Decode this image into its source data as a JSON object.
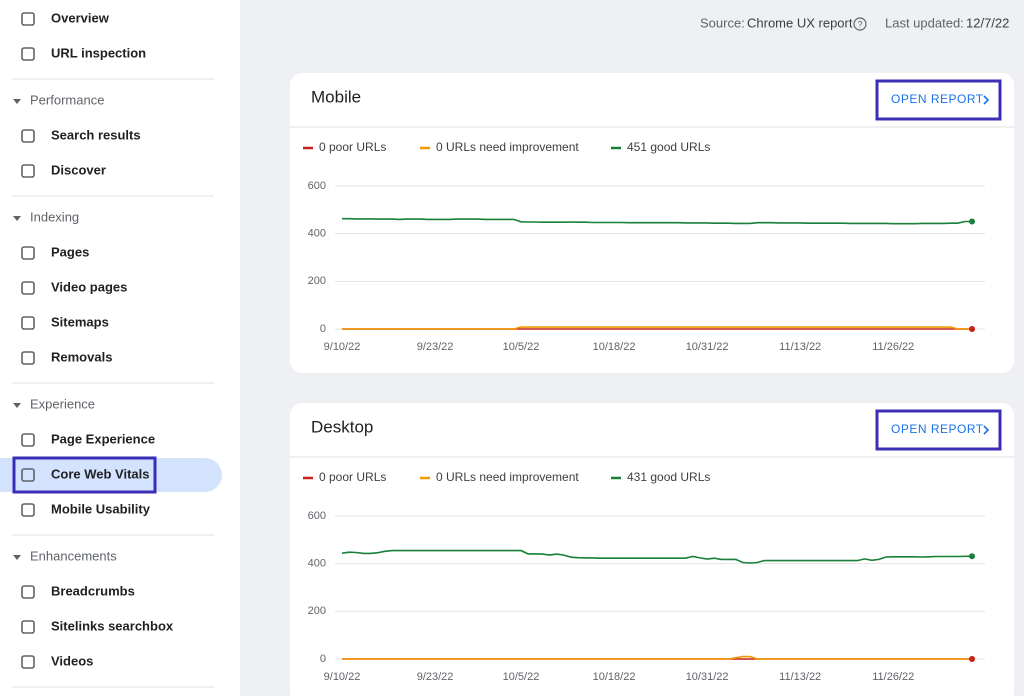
{
  "nav": {
    "items": [
      "Overview",
      "URL inspection"
    ],
    "groups": [
      {
        "heading": "Performance",
        "items": [
          "Search results",
          "Discover"
        ]
      },
      {
        "heading": "Indexing",
        "items": [
          "Pages",
          "Video pages",
          "Sitemaps",
          "Removals"
        ]
      },
      {
        "heading": "Experience",
        "items": [
          "Page Experience",
          "Core Web Vitals",
          "Mobile Usability"
        ]
      },
      {
        "heading": "Enhancements",
        "items": [
          "Breadcrumbs",
          "Sitelinks searchbox",
          "Videos"
        ]
      }
    ]
  },
  "header": {
    "source_label": "Source:",
    "source": "Chrome UX report",
    "updated_label": "Last updated:",
    "updated": "12/7/22"
  },
  "chart_data": [
    {
      "type": "line",
      "title": "Mobile",
      "button": "OPEN REPORT",
      "categories": [
        "9/10/22",
        null,
        null,
        null,
        null,
        null,
        null,
        null,
        null,
        null,
        null,
        null,
        null,
        "9/23/22",
        null,
        null,
        null,
        null,
        null,
        null,
        null,
        null,
        null,
        null,
        null,
        "10/5/22",
        null,
        null,
        null,
        null,
        null,
        null,
        null,
        null,
        null,
        null,
        null,
        null,
        "10/18/22",
        null,
        null,
        null,
        null,
        null,
        null,
        null,
        null,
        null,
        null,
        null,
        null,
        "10/31/22",
        null,
        null,
        null,
        null,
        null,
        null,
        null,
        null,
        null,
        null,
        null,
        null,
        "11/13/22",
        null,
        null,
        null,
        null,
        null,
        null,
        null,
        null,
        null,
        null,
        null,
        null,
        "11/26/22",
        null,
        null,
        null,
        null,
        null,
        null,
        null,
        null,
        null,
        null,
        null
      ],
      "series": [
        {
          "name": "0 poor URLs",
          "color": "#c5221f",
          "values": [
            0,
            0,
            0,
            0,
            0,
            0,
            0,
            0,
            0,
            0,
            0,
            0,
            0,
            0,
            0,
            0,
            0,
            0,
            0,
            0,
            0,
            0,
            0,
            0,
            0,
            0,
            0,
            0,
            0,
            0,
            0,
            0,
            0,
            0,
            0,
            0,
            0,
            0,
            0,
            0,
            0,
            0,
            0,
            0,
            0,
            0,
            0,
            0,
            0,
            0,
            0,
            0,
            0,
            0,
            0,
            0,
            0,
            0,
            0,
            0,
            0,
            0,
            0,
            0,
            0,
            0,
            0,
            0,
            0,
            0,
            0,
            0,
            0,
            0,
            0,
            0,
            0,
            0,
            0,
            0,
            0,
            0,
            0,
            0,
            0,
            0,
            0,
            0,
            0
          ]
        },
        {
          "name": "0 URLs need improvement",
          "color": "#f29900",
          "values": [
            0,
            0,
            0,
            0,
            0,
            0,
            0,
            0,
            0,
            0,
            0,
            0,
            0,
            0,
            0,
            0,
            0,
            0,
            0,
            0,
            0,
            0,
            0,
            0,
            0,
            8,
            8,
            8,
            8,
            8,
            8,
            8,
            8,
            8,
            8,
            8,
            8,
            8,
            8,
            8,
            8,
            8,
            8,
            8,
            8,
            8,
            8,
            8,
            8,
            8,
            8,
            8,
            8,
            8,
            8,
            8,
            8,
            8,
            8,
            8,
            8,
            8,
            8,
            8,
            8,
            8,
            8,
            8,
            8,
            8,
            8,
            8,
            8,
            8,
            8,
            8,
            8,
            8,
            8,
            8,
            8,
            8,
            8,
            8,
            8,
            8,
            0,
            0,
            0
          ]
        },
        {
          "name": "451 good URLs",
          "color": "#188038",
          "values": [
            463,
            463,
            462,
            462,
            462,
            461,
            461,
            461,
            460,
            461,
            461,
            461,
            460,
            460,
            460,
            460,
            461,
            461,
            461,
            461,
            460,
            460,
            460,
            460,
            460,
            450,
            449,
            449,
            448,
            448,
            448,
            448,
            449,
            448,
            448,
            447,
            447,
            447,
            447,
            447,
            446,
            446,
            446,
            446,
            446,
            446,
            446,
            446,
            445,
            445,
            445,
            445,
            444,
            444,
            444,
            443,
            443,
            443,
            446,
            446,
            446,
            445,
            445,
            445,
            445,
            444,
            444,
            444,
            444,
            444,
            444,
            443,
            443,
            443,
            443,
            443,
            443,
            442,
            442,
            442,
            442,
            443,
            443,
            443,
            443,
            444,
            444,
            451,
            451
          ]
        }
      ],
      "ylim": [
        0,
        600
      ],
      "yticks": [
        0,
        200,
        400,
        600
      ],
      "grid": true
    },
    {
      "type": "line",
      "title": "Desktop",
      "button": "OPEN REPORT",
      "categories": [
        "9/10/22",
        null,
        null,
        null,
        null,
        null,
        null,
        null,
        null,
        null,
        null,
        null,
        null,
        "9/23/22",
        null,
        null,
        null,
        null,
        null,
        null,
        null,
        null,
        null,
        null,
        null,
        "10/5/22",
        null,
        null,
        null,
        null,
        null,
        null,
        null,
        null,
        null,
        null,
        null,
        null,
        "10/18/22",
        null,
        null,
        null,
        null,
        null,
        null,
        null,
        null,
        null,
        null,
        null,
        null,
        "10/31/22",
        null,
        null,
        null,
        null,
        null,
        null,
        null,
        null,
        null,
        null,
        null,
        null,
        "11/13/22",
        null,
        null,
        null,
        null,
        null,
        null,
        null,
        null,
        null,
        null,
        null,
        null,
        "11/26/22",
        null,
        null,
        null,
        null,
        null,
        null,
        null,
        null,
        null,
        null,
        null
      ],
      "series": [
        {
          "name": "0 poor URLs",
          "color": "#c5221f",
          "values": [
            0,
            0,
            0,
            0,
            0,
            0,
            0,
            0,
            0,
            0,
            0,
            0,
            0,
            0,
            0,
            0,
            0,
            0,
            0,
            0,
            0,
            0,
            0,
            0,
            0,
            0,
            0,
            0,
            0,
            0,
            0,
            0,
            0,
            0,
            0,
            0,
            0,
            0,
            0,
            0,
            0,
            0,
            0,
            0,
            0,
            0,
            0,
            0,
            0,
            0,
            0,
            0,
            0,
            0,
            0,
            0,
            0,
            0,
            0,
            0,
            0,
            0,
            0,
            0,
            0,
            0,
            0,
            0,
            0,
            0,
            0,
            0,
            0,
            0,
            0,
            0,
            0,
            0,
            0,
            0,
            0,
            0,
            0,
            0,
            0,
            0,
            0,
            0,
            0
          ]
        },
        {
          "name": "0 URLs need improvement",
          "color": "#f29900",
          "values": [
            0,
            0,
            0,
            0,
            0,
            0,
            0,
            0,
            0,
            0,
            0,
            0,
            0,
            0,
            0,
            0,
            0,
            0,
            0,
            0,
            0,
            0,
            0,
            0,
            0,
            0,
            0,
            0,
            0,
            0,
            0,
            0,
            0,
            0,
            0,
            0,
            0,
            0,
            0,
            0,
            0,
            0,
            0,
            0,
            0,
            0,
            0,
            0,
            0,
            0,
            0,
            0,
            0,
            0,
            0,
            5,
            10,
            10,
            0,
            0,
            0,
            0,
            0,
            0,
            0,
            0,
            0,
            0,
            0,
            0,
            0,
            0,
            0,
            0,
            0,
            0,
            0,
            0,
            0,
            0,
            0,
            0,
            0,
            0,
            0,
            0,
            0,
            0,
            0
          ]
        },
        {
          "name": "431 good URLs",
          "color": "#188038",
          "values": [
            444,
            448,
            447,
            443,
            443,
            446,
            452,
            455,
            455,
            455,
            455,
            455,
            455,
            455,
            455,
            455,
            455,
            455,
            455,
            455,
            455,
            455,
            455,
            455,
            455,
            455,
            441,
            441,
            440,
            436,
            440,
            436,
            427,
            425,
            424,
            424,
            423,
            423,
            423,
            423,
            423,
            423,
            423,
            423,
            423,
            423,
            423,
            423,
            423,
            430,
            424,
            419,
            423,
            418,
            418,
            418,
            405,
            403,
            405,
            413,
            413,
            413,
            413,
            413,
            413,
            413,
            413,
            413,
            413,
            413,
            413,
            413,
            413,
            420,
            414,
            418,
            428,
            429,
            429,
            429,
            429,
            428,
            429,
            430,
            430,
            430,
            430,
            431,
            431
          ]
        }
      ],
      "ylim": [
        0,
        600
      ],
      "yticks": [
        0,
        200,
        400,
        600
      ],
      "grid": true
    }
  ]
}
